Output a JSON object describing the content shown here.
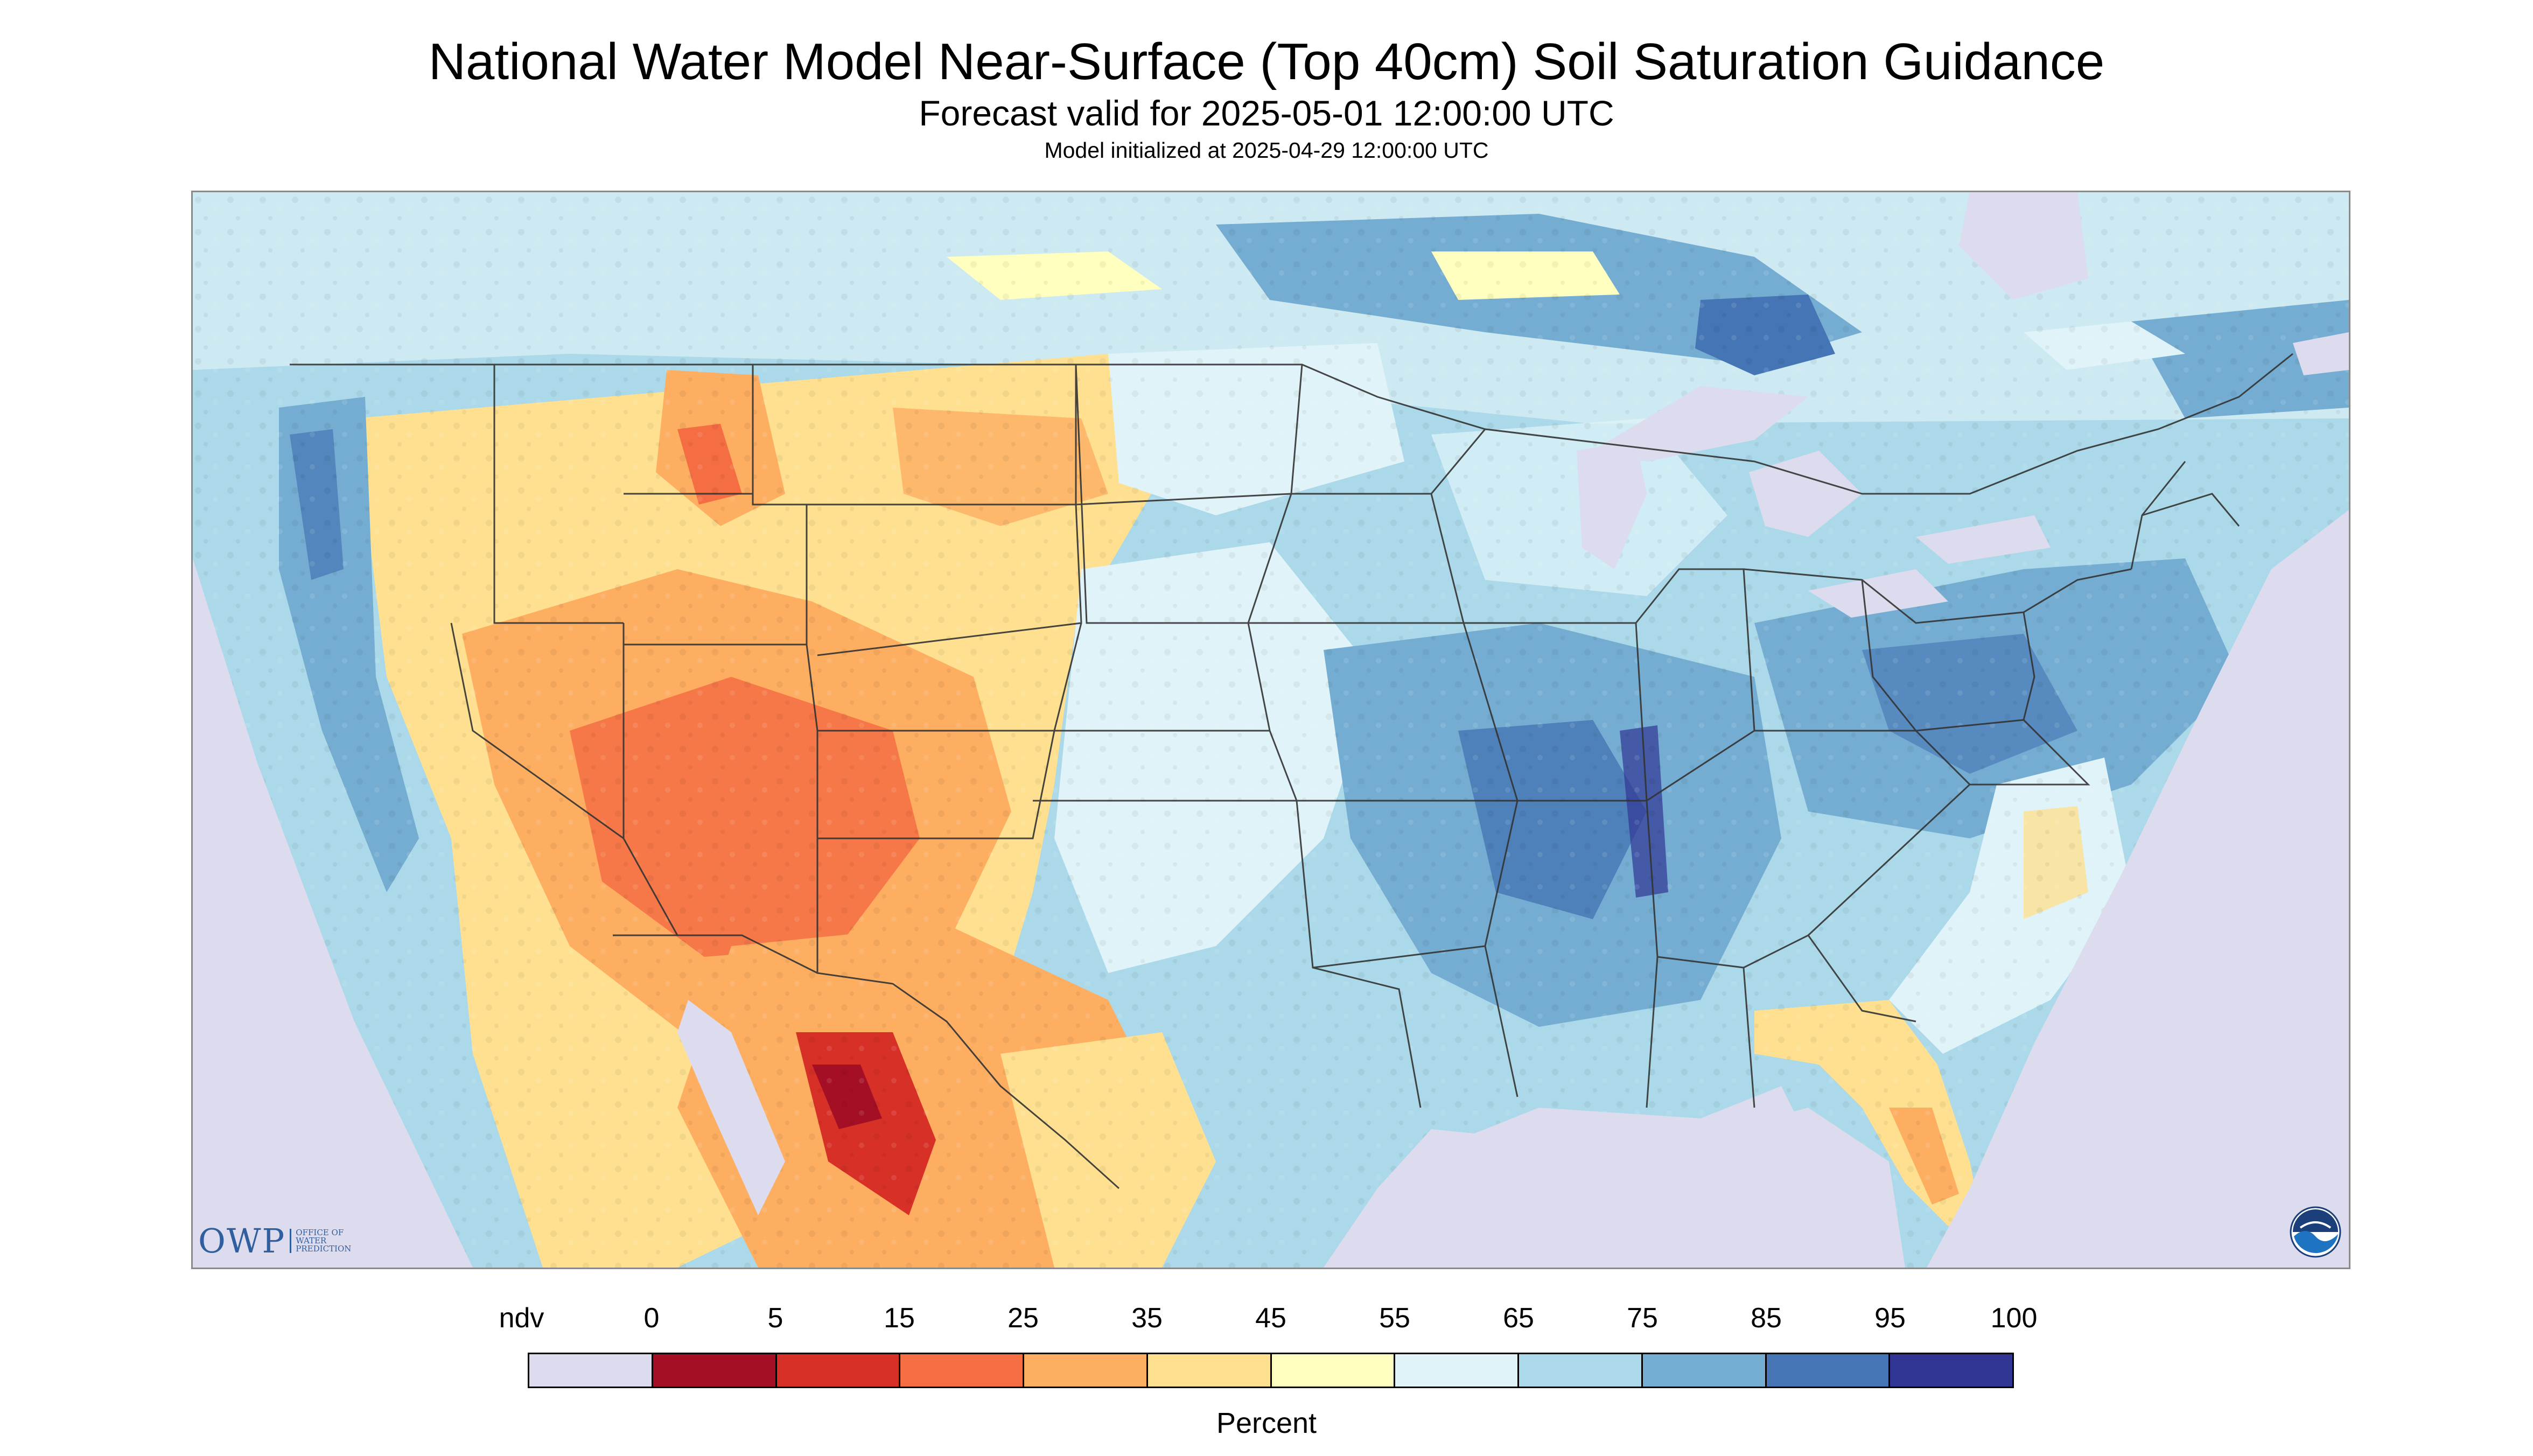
{
  "header": {
    "title": "National Water Model Near-Surface (Top 40cm) Soil Saturation Guidance",
    "subtitle": "Forecast valid for 2025-05-01 12:00:00 UTC",
    "initialized": "Model initialized at 2025-04-29 12:00:00 UTC"
  },
  "map": {
    "variable": "Near-surface soil saturation",
    "no_data_color": "#dcdcee",
    "water_color": "#dcdcee",
    "border_color": "#333333"
  },
  "legend": {
    "units": "Percent",
    "tick_labels": [
      "ndv",
      "0",
      "5",
      "15",
      "25",
      "35",
      "45",
      "55",
      "65",
      "75",
      "85",
      "95",
      "100"
    ],
    "colors": [
      "#dcdcee",
      "#a50f26",
      "#d73027",
      "#f46d43",
      "#fdae61",
      "#fee090",
      "#ffffbf",
      "#e0f3f8",
      "#abd9e9",
      "#74add1",
      "#4575b4",
      "#313695"
    ]
  },
  "logos": {
    "owp_mark": "OWP",
    "owp_text": "OFFICE OF\nWATER\nPREDICTION",
    "noaa_icon": "noaa-logo-icon"
  }
}
